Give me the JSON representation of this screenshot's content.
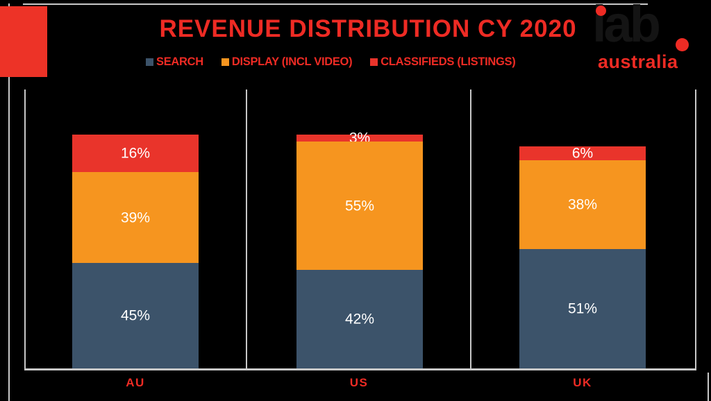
{
  "chart_data": {
    "type": "bar",
    "stacked": true,
    "title": "REVENUE DISTRIBUTION CY 2020",
    "categories": [
      "AU",
      "US",
      "UK"
    ],
    "series": [
      {
        "name": "SEARCH",
        "color": "#3C536A",
        "values": [
          45,
          42,
          51
        ]
      },
      {
        "name": "DISPLAY (INCL VIDEO)",
        "color": "#F6951F",
        "values": [
          39,
          55,
          38
        ]
      },
      {
        "name": "CLASSIFIEDS (LISTINGS)",
        "color": "#E9342B",
        "values": [
          16,
          3,
          6
        ]
      }
    ],
    "value_suffix": "%",
    "ylim": [
      0,
      100
    ],
    "legend_position": "top",
    "grid": "panel-separator-lines"
  },
  "branding": {
    "logo_word": "iab",
    "logo_sub": "australia"
  },
  "colors": {
    "background": "#000000",
    "brand_red": "#EE2B24",
    "accent_square": "#ED3327",
    "frame_line": "#C8C8C8",
    "bar_value_text": "#FFFFFF"
  }
}
